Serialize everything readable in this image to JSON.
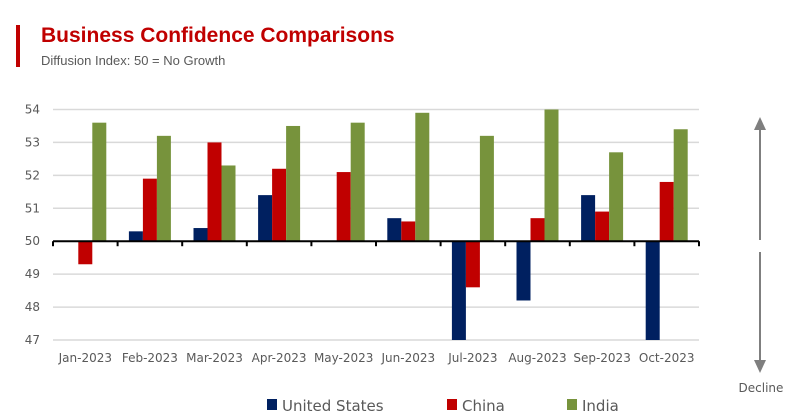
{
  "chart_data": {
    "type": "bar",
    "title": "Business Confidence Comparisons",
    "subtitle": "Diffusion Index: 50 = No Growth",
    "categories": [
      "Jan-2023",
      "Feb-2023",
      "Mar-2023",
      "Apr-2023",
      "May-2023",
      "Jun-2023",
      "Jul-2023",
      "Aug-2023",
      "Sep-2023",
      "Oct-2023"
    ],
    "baseline": 50,
    "ylim": [
      47,
      54
    ],
    "yticks": [
      47,
      48,
      49,
      50,
      51,
      52,
      53,
      54
    ],
    "grid": true,
    "legend_position": "bottom",
    "series": [
      {
        "name": "United States",
        "color": "#002060",
        "values": [
          null,
          50.3,
          50.4,
          51.4,
          null,
          50.7,
          47.0,
          48.2,
          51.4,
          47.0
        ]
      },
      {
        "name": "China",
        "color": "#c00000",
        "values": [
          49.3,
          51.9,
          53.0,
          52.2,
          52.1,
          50.6,
          48.6,
          50.7,
          50.9,
          51.8
        ]
      },
      {
        "name": "India",
        "color": "#77933c",
        "values": [
          53.6,
          53.2,
          52.3,
          53.5,
          53.6,
          53.9,
          53.2,
          54.0,
          52.7,
          53.4
        ]
      }
    ],
    "annotation": "Decline"
  }
}
